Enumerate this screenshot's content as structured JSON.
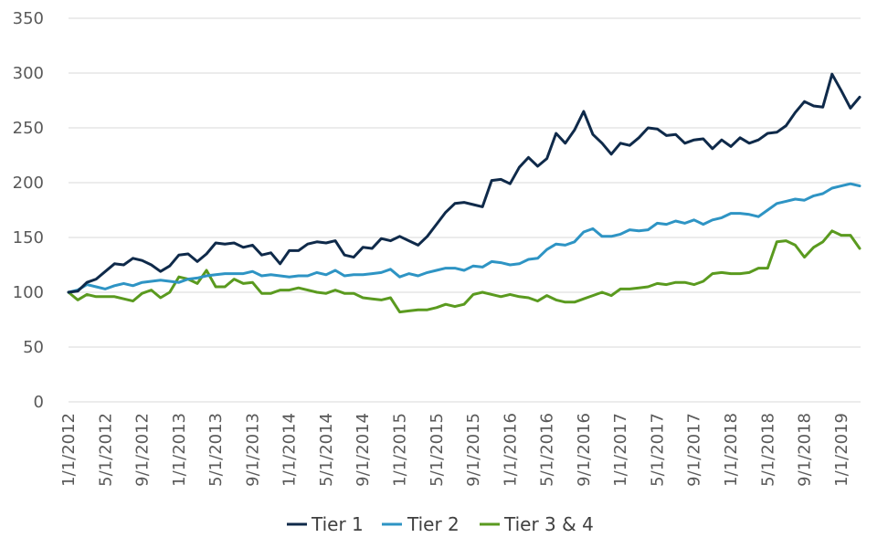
{
  "chart_data": {
    "type": "line",
    "title": "",
    "xlabel": "",
    "ylabel": "",
    "ylim": [
      0,
      350
    ],
    "y_ticks": [
      0,
      50,
      100,
      150,
      200,
      250,
      300,
      350
    ],
    "grid": "horizontal",
    "legend_position": "bottom",
    "x_start": "1/1/2012",
    "x_end": "6/1/2019",
    "x_ticks": [
      "1/1/2012",
      "5/1/2012",
      "9/1/2012",
      "1/1/2013",
      "5/1/2013",
      "9/1/2013",
      "1/1/2014",
      "5/1/2014",
      "9/1/2014",
      "1/1/2015",
      "5/1/2015",
      "9/1/2015",
      "1/1/2016",
      "5/1/2016",
      "9/1/2016",
      "1/1/2017",
      "5/1/2017",
      "9/1/2017",
      "1/1/2018",
      "5/1/2018",
      "9/1/2018",
      "1/1/2019"
    ],
    "series": [
      {
        "name": "Tier 1",
        "color": "#0f2a4a",
        "values": [
          100,
          101,
          109,
          112,
          119,
          126,
          125,
          131,
          129,
          125,
          119,
          124,
          134,
          135,
          128,
          135,
          145,
          144,
          145,
          141,
          143,
          134,
          136,
          126,
          138,
          138,
          144,
          146,
          145,
          147,
          134,
          132,
          141,
          140,
          149,
          147,
          151,
          147,
          143,
          151,
          162,
          173,
          181,
          182,
          180,
          178,
          202,
          203,
          199,
          214,
          223,
          215,
          222,
          245,
          236,
          248,
          265,
          244,
          236,
          226,
          236,
          234,
          241,
          250,
          249,
          243,
          244,
          236,
          239,
          240,
          231,
          239,
          233,
          241,
          236,
          239,
          245,
          246,
          252,
          264,
          274,
          270,
          269,
          299,
          284,
          268,
          278
        ]
      },
      {
        "name": "Tier 2",
        "color": "#2e94c4",
        "values": [
          100,
          102,
          107,
          105,
          103,
          106,
          108,
          106,
          109,
          110,
          111,
          110,
          109,
          112,
          113,
          115,
          116,
          117,
          117,
          117,
          119,
          115,
          116,
          115,
          114,
          115,
          115,
          118,
          116,
          120,
          115,
          116,
          116,
          117,
          118,
          121,
          114,
          117,
          115,
          118,
          120,
          122,
          122,
          120,
          124,
          123,
          128,
          127,
          125,
          126,
          130,
          131,
          139,
          144,
          143,
          146,
          155,
          158,
          151,
          151,
          153,
          157,
          156,
          157,
          163,
          162,
          165,
          163,
          166,
          162,
          166,
          168,
          172,
          172,
          171,
          169,
          175,
          181,
          183,
          185,
          184,
          188,
          190,
          195,
          197,
          199,
          197
        ]
      },
      {
        "name": "Tier 3 & 4",
        "color": "#5a9a1f",
        "values": [
          100,
          93,
          98,
          96,
          96,
          96,
          94,
          92,
          99,
          102,
          95,
          100,
          114,
          112,
          108,
          120,
          105,
          105,
          112,
          108,
          109,
          99,
          99,
          102,
          102,
          104,
          102,
          100,
          99,
          102,
          99,
          99,
          95,
          94,
          93,
          95,
          82,
          83,
          84,
          84,
          86,
          89,
          87,
          89,
          98,
          100,
          98,
          96,
          98,
          96,
          95,
          92,
          97,
          93,
          91,
          91,
          94,
          97,
          100,
          97,
          103,
          103,
          104,
          105,
          108,
          107,
          109,
          109,
          107,
          110,
          117,
          118,
          117,
          117,
          118,
          122,
          122,
          146,
          147,
          143,
          132,
          141,
          146,
          156,
          152,
          152,
          140
        ]
      }
    ]
  }
}
